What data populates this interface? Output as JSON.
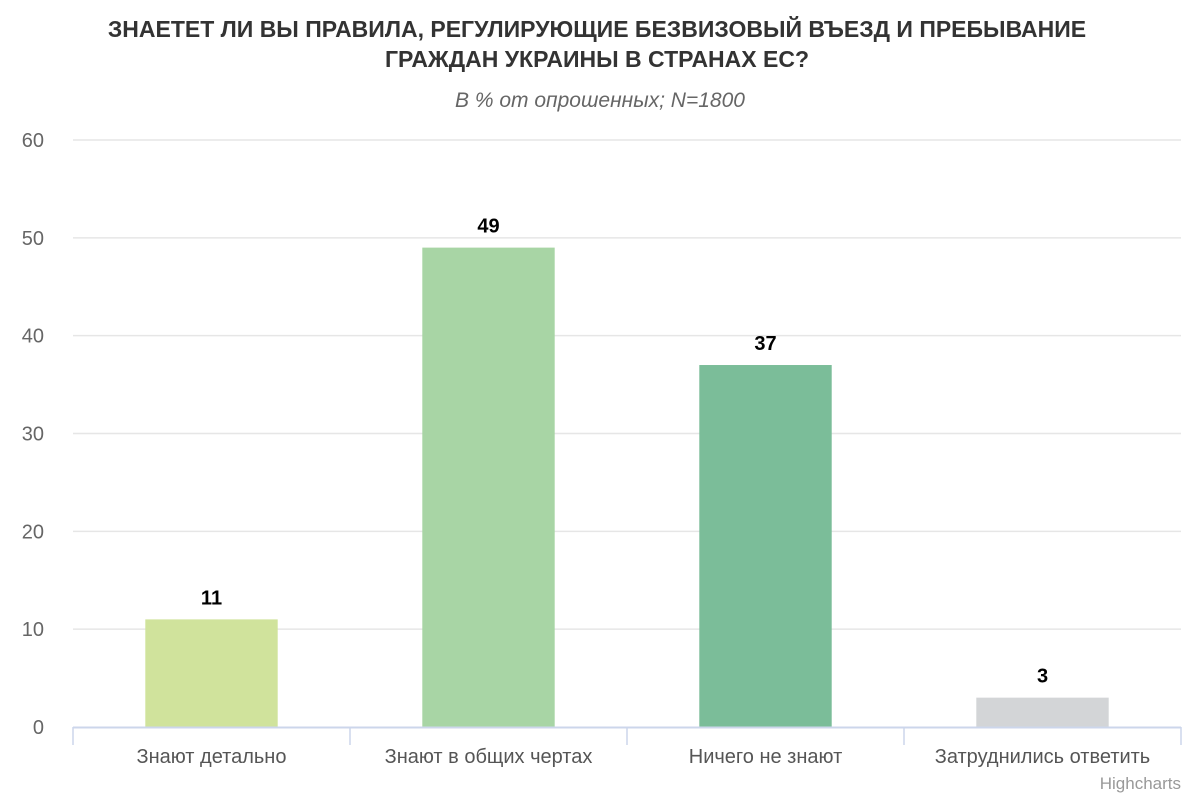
{
  "chart_data": {
    "type": "bar",
    "title_line1": "ЗНАЕТЕТ ЛИ ВЫ ПРАВИЛА, РЕГУЛИРУЮЩИЕ БЕЗВИЗОВЫЙ ВЪЕЗД И ПРЕБЫВАНИЕ",
    "title_line2": "ГРАЖДАН УКРАИНЫ В СТРАНАХ ЕС?",
    "subtitle": "В % от опрошенных; N=1800",
    "categories": [
      "Знают детально",
      "Знают в общих чертах",
      "Ничего не знают",
      "Затруднились ответить"
    ],
    "values": [
      11,
      49,
      37,
      3
    ],
    "colors": [
      "#d0e39c",
      "#a8d5a5",
      "#7bbd99",
      "#d3d5d7"
    ],
    "ylim": [
      0,
      60
    ],
    "yticks": [
      0,
      10,
      20,
      30,
      40,
      50,
      60
    ],
    "grid": true,
    "legend": "none",
    "credits": "Highcharts"
  }
}
